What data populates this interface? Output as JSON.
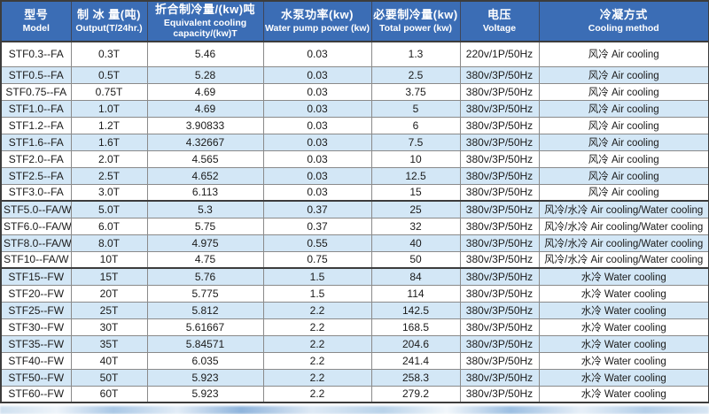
{
  "table": {
    "columns": [
      {
        "key": "model",
        "zh": "型号",
        "en": "Model"
      },
      {
        "key": "output",
        "zh": "制 冰 量(吨)",
        "en": "Output(T/24hr.)"
      },
      {
        "key": "equivalent-cooling",
        "zh": "折合制冷量/(kw)吨",
        "en": "Equivalent cooling capacity/(kw)T"
      },
      {
        "key": "water-pump-power",
        "zh": "水泵功率(kw)",
        "en": "Water pump power (kw)"
      },
      {
        "key": "total-power",
        "zh": "必要制冷量(kw)",
        "en": "Total power (kw)"
      },
      {
        "key": "voltage",
        "zh": "电压",
        "en": "Voltage"
      },
      {
        "key": "cooling-method",
        "zh": "冷凝方式",
        "en": "Cooling method"
      }
    ],
    "rows": [
      [
        "STF0.3--FA",
        "0.3T",
        "5.46",
        "0.03",
        "1.3",
        "220v/1P/50Hz",
        "风冷 Air cooling"
      ],
      [
        "STF0.5--FA",
        "0.5T",
        "5.28",
        "0.03",
        "2.5",
        "380v/3P/50Hz",
        "风冷 Air cooling"
      ],
      [
        "STF0.75--FA",
        "0.75T",
        "4.69",
        "0.03",
        "3.75",
        "380v/3P/50Hz",
        "风冷 Air cooling"
      ],
      [
        "STF1.0--FA",
        "1.0T",
        "4.69",
        "0.03",
        "5",
        "380v/3P/50Hz",
        "风冷 Air cooling"
      ],
      [
        "STF1.2--FA",
        "1.2T",
        "3.90833",
        "0.03",
        "6",
        "380v/3P/50Hz",
        "风冷 Air cooling"
      ],
      [
        "STF1.6--FA",
        "1.6T",
        "4.32667",
        "0.03",
        "7.5",
        "380v/3P/50Hz",
        "风冷 Air cooling"
      ],
      [
        "STF2.0--FA",
        "2.0T",
        "4.565",
        "0.03",
        "10",
        "380v/3P/50Hz",
        "风冷 Air cooling"
      ],
      [
        "STF2.5--FA",
        "2.5T",
        "4.652",
        "0.03",
        "12.5",
        "380v/3P/50Hz",
        "风冷 Air cooling"
      ],
      [
        "STF3.0--FA",
        "3.0T",
        "6.113",
        "0.03",
        "15",
        "380v/3P/50Hz",
        "风冷 Air cooling"
      ],
      [
        "STF5.0--FA/W",
        "5.0T",
        "5.3",
        "0.37",
        "25",
        "380v/3P/50Hz",
        "风冷/水冷 Air cooling/Water cooling"
      ],
      [
        "STF6.0--FA/W",
        "6.0T",
        "5.75",
        "0.37",
        "32",
        "380v/3P/50Hz",
        "风冷/水冷 Air cooling/Water cooling"
      ],
      [
        "STF8.0--FA/W",
        "8.0T",
        "4.975",
        "0.55",
        "40",
        "380v/3P/50Hz",
        "风冷/水冷 Air cooling/Water cooling"
      ],
      [
        "STF10--FA/W",
        "10T",
        "4.75",
        "0.75",
        "50",
        "380v/3P/50Hz",
        "风冷/水冷 Air cooling/Water cooling"
      ],
      [
        "STF15--FW",
        "15T",
        "5.76",
        "1.5",
        "84",
        "380v/3P/50Hz",
        "水冷 Water cooling"
      ],
      [
        "STF20--FW",
        "20T",
        "5.775",
        "1.5",
        "114",
        "380v/3P/50Hz",
        "水冷 Water cooling"
      ],
      [
        "STF25--FW",
        "25T",
        "5.812",
        "2.2",
        "142.5",
        "380v/3P/50Hz",
        "水冷 Water cooling"
      ],
      [
        "STF30--FW",
        "30T",
        "5.61667",
        "2.2",
        "168.5",
        "380v/3P/50Hz",
        "水冷 Water cooling"
      ],
      [
        "STF35--FW",
        "35T",
        "5.84571",
        "2.2",
        "204.6",
        "380v/3P/50Hz",
        "水冷 Water cooling"
      ],
      [
        "STF40--FW",
        "40T",
        "6.035",
        "2.2",
        "241.4",
        "380v/3P/50Hz",
        "水冷 Water cooling"
      ],
      [
        "STF50--FW",
        "50T",
        "5.923",
        "2.2",
        "258.3",
        "380v/3P/50Hz",
        "水冷 Water cooling"
      ],
      [
        "STF60--FW",
        "60T",
        "5.923",
        "2.2",
        "279.2",
        "380v/3P/50Hz",
        "水冷 Water cooling"
      ]
    ],
    "group_breaks_after": [
      9,
      13
    ]
  },
  "colors": {
    "header_bg": "#3b6db5",
    "header_text": "#ffffff",
    "row_alt_bg": "#d3e7f6",
    "body_text": "#1a1a1a",
    "grid_line": "#8a8a8a",
    "frame": "#3c3c3c"
  }
}
